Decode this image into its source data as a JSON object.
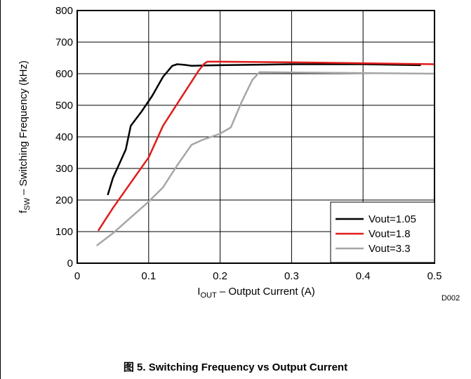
{
  "chart_data": {
    "type": "line",
    "xlabel": {
      "symbol": "I",
      "sub": "OUT",
      "rest": " – Output Current (A)"
    },
    "ylabel": {
      "symbol": "f",
      "sub": "SW",
      "rest": " – Switching Frequency (kHz)"
    },
    "xlim": [
      0,
      0.5
    ],
    "ylim": [
      0,
      800
    ],
    "xticks": [
      0,
      0.1,
      0.2,
      0.3,
      0.4,
      0.5
    ],
    "xtick_labels": [
      "0",
      "0.1",
      "0.2",
      "0.3",
      "0.4",
      "0.5"
    ],
    "yticks": [
      0,
      100,
      200,
      300,
      400,
      500,
      600,
      700,
      800
    ],
    "ytick_labels": [
      "0",
      "100",
      "200",
      "300",
      "400",
      "500",
      "600",
      "700",
      "800"
    ],
    "grid": true,
    "legend_position": "bottom-right",
    "series": [
      {
        "name": "Vout=1.05",
        "color": "#000000",
        "x": [
          0.043,
          0.05,
          0.06,
          0.068,
          0.075,
          0.09,
          0.105,
          0.12,
          0.133,
          0.14,
          0.15,
          0.16,
          0.18,
          0.2,
          0.3,
          0.4,
          0.48
        ],
        "y": [
          218,
          270,
          320,
          360,
          435,
          480,
          530,
          590,
          625,
          630,
          628,
          625,
          626,
          627,
          630,
          630,
          627
        ]
      },
      {
        "name": "Vout=1.8",
        "color": "#e01b1b",
        "x": [
          0.03,
          0.05,
          0.075,
          0.1,
          0.12,
          0.14,
          0.16,
          0.17,
          0.178,
          0.182,
          0.2,
          0.3,
          0.4,
          0.5
        ],
        "y": [
          105,
          175,
          255,
          335,
          435,
          505,
          575,
          610,
          632,
          638,
          638,
          636,
          633,
          630
        ]
      },
      {
        "name": "Vout=3.3",
        "color": "#a6a6a6",
        "x": [
          0.028,
          0.05,
          0.075,
          0.1,
          0.12,
          0.14,
          0.16,
          0.175,
          0.2,
          0.215,
          0.23,
          0.245,
          0.255,
          0.3,
          0.4,
          0.5
        ],
        "y": [
          57,
          95,
          145,
          195,
          240,
          310,
          375,
          390,
          410,
          430,
          510,
          580,
          605,
          604,
          602,
          600
        ]
      }
    ],
    "watermark": "D002"
  },
  "caption": "图 5. Switching Frequency vs Output Current"
}
